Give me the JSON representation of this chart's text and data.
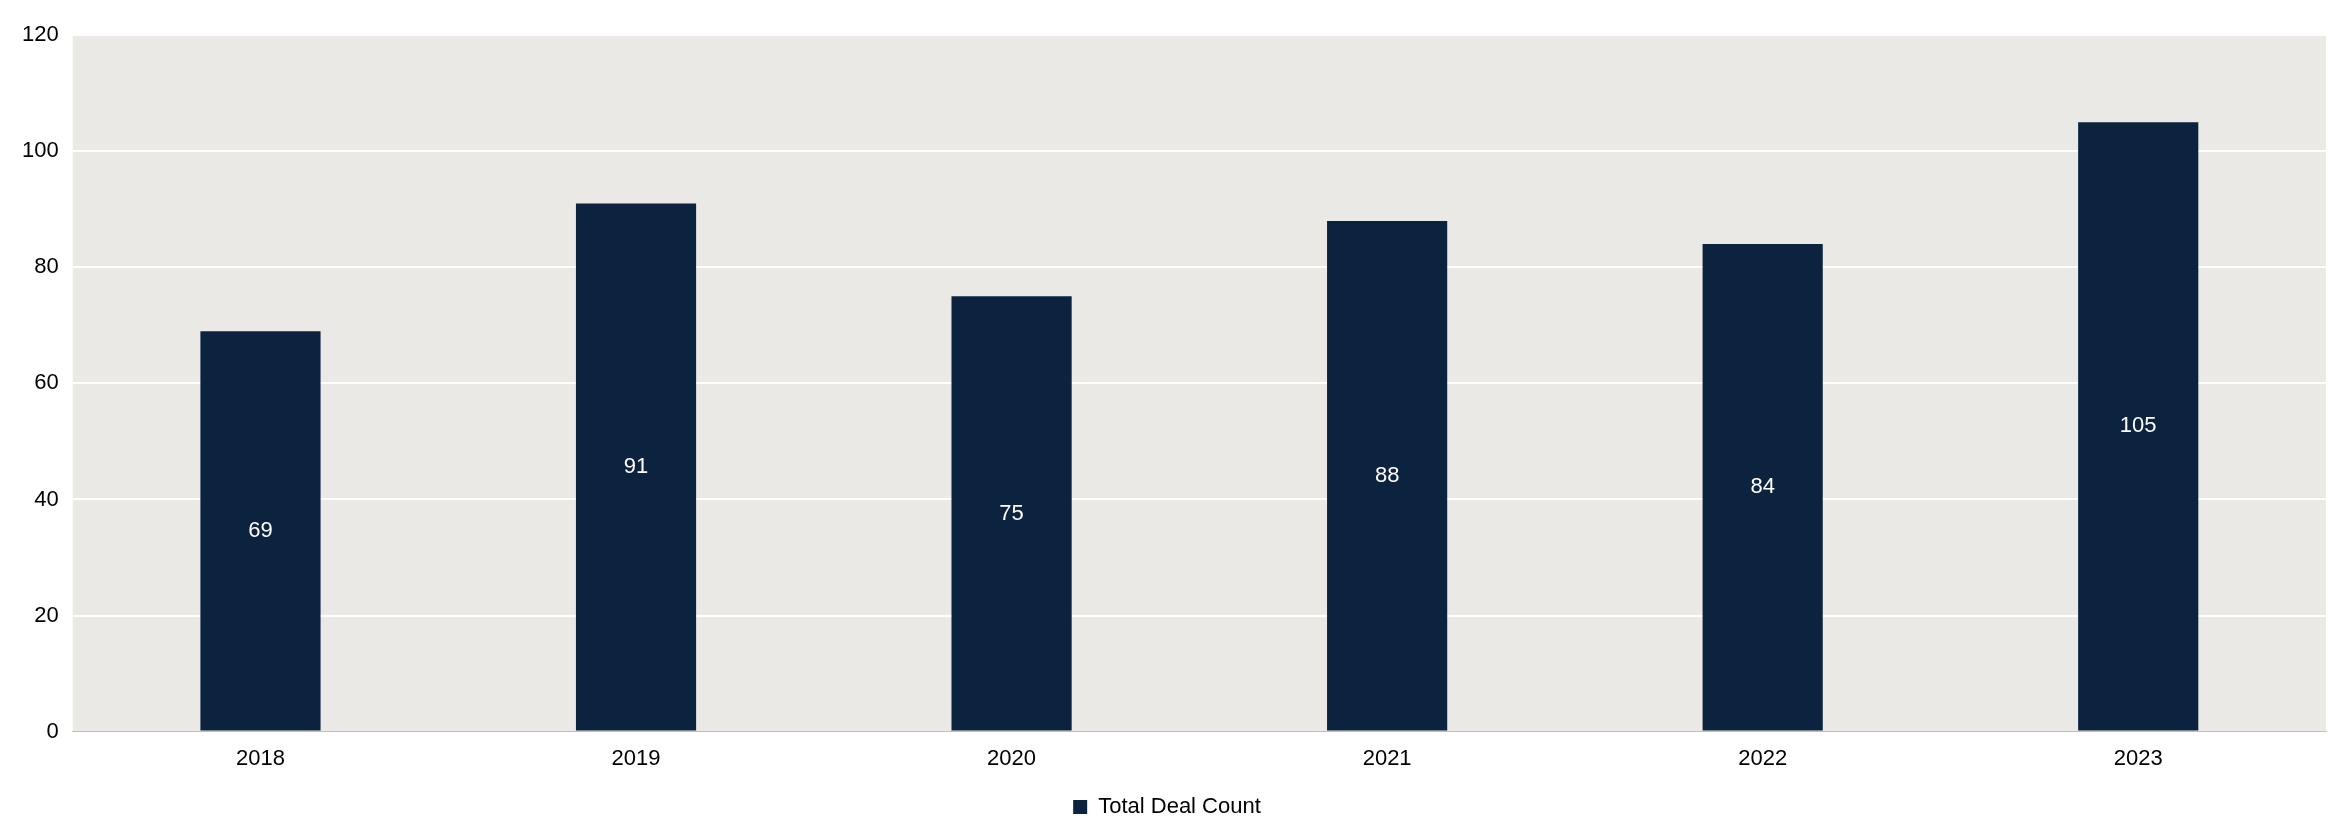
{
  "chart_data": {
    "type": "bar",
    "categories": [
      "2018",
      "2019",
      "2020",
      "2021",
      "2022",
      "2023"
    ],
    "series": [
      {
        "name": "Total Deal Count",
        "color": "#0c2340",
        "values": [
          69,
          91,
          75,
          88,
          84,
          105
        ]
      }
    ],
    "ylim": [
      0,
      120
    ],
    "yticks": [
      0,
      20,
      40,
      60,
      80,
      100,
      120
    ],
    "grid": "y",
    "legend": "bottom",
    "data_labels": true
  }
}
